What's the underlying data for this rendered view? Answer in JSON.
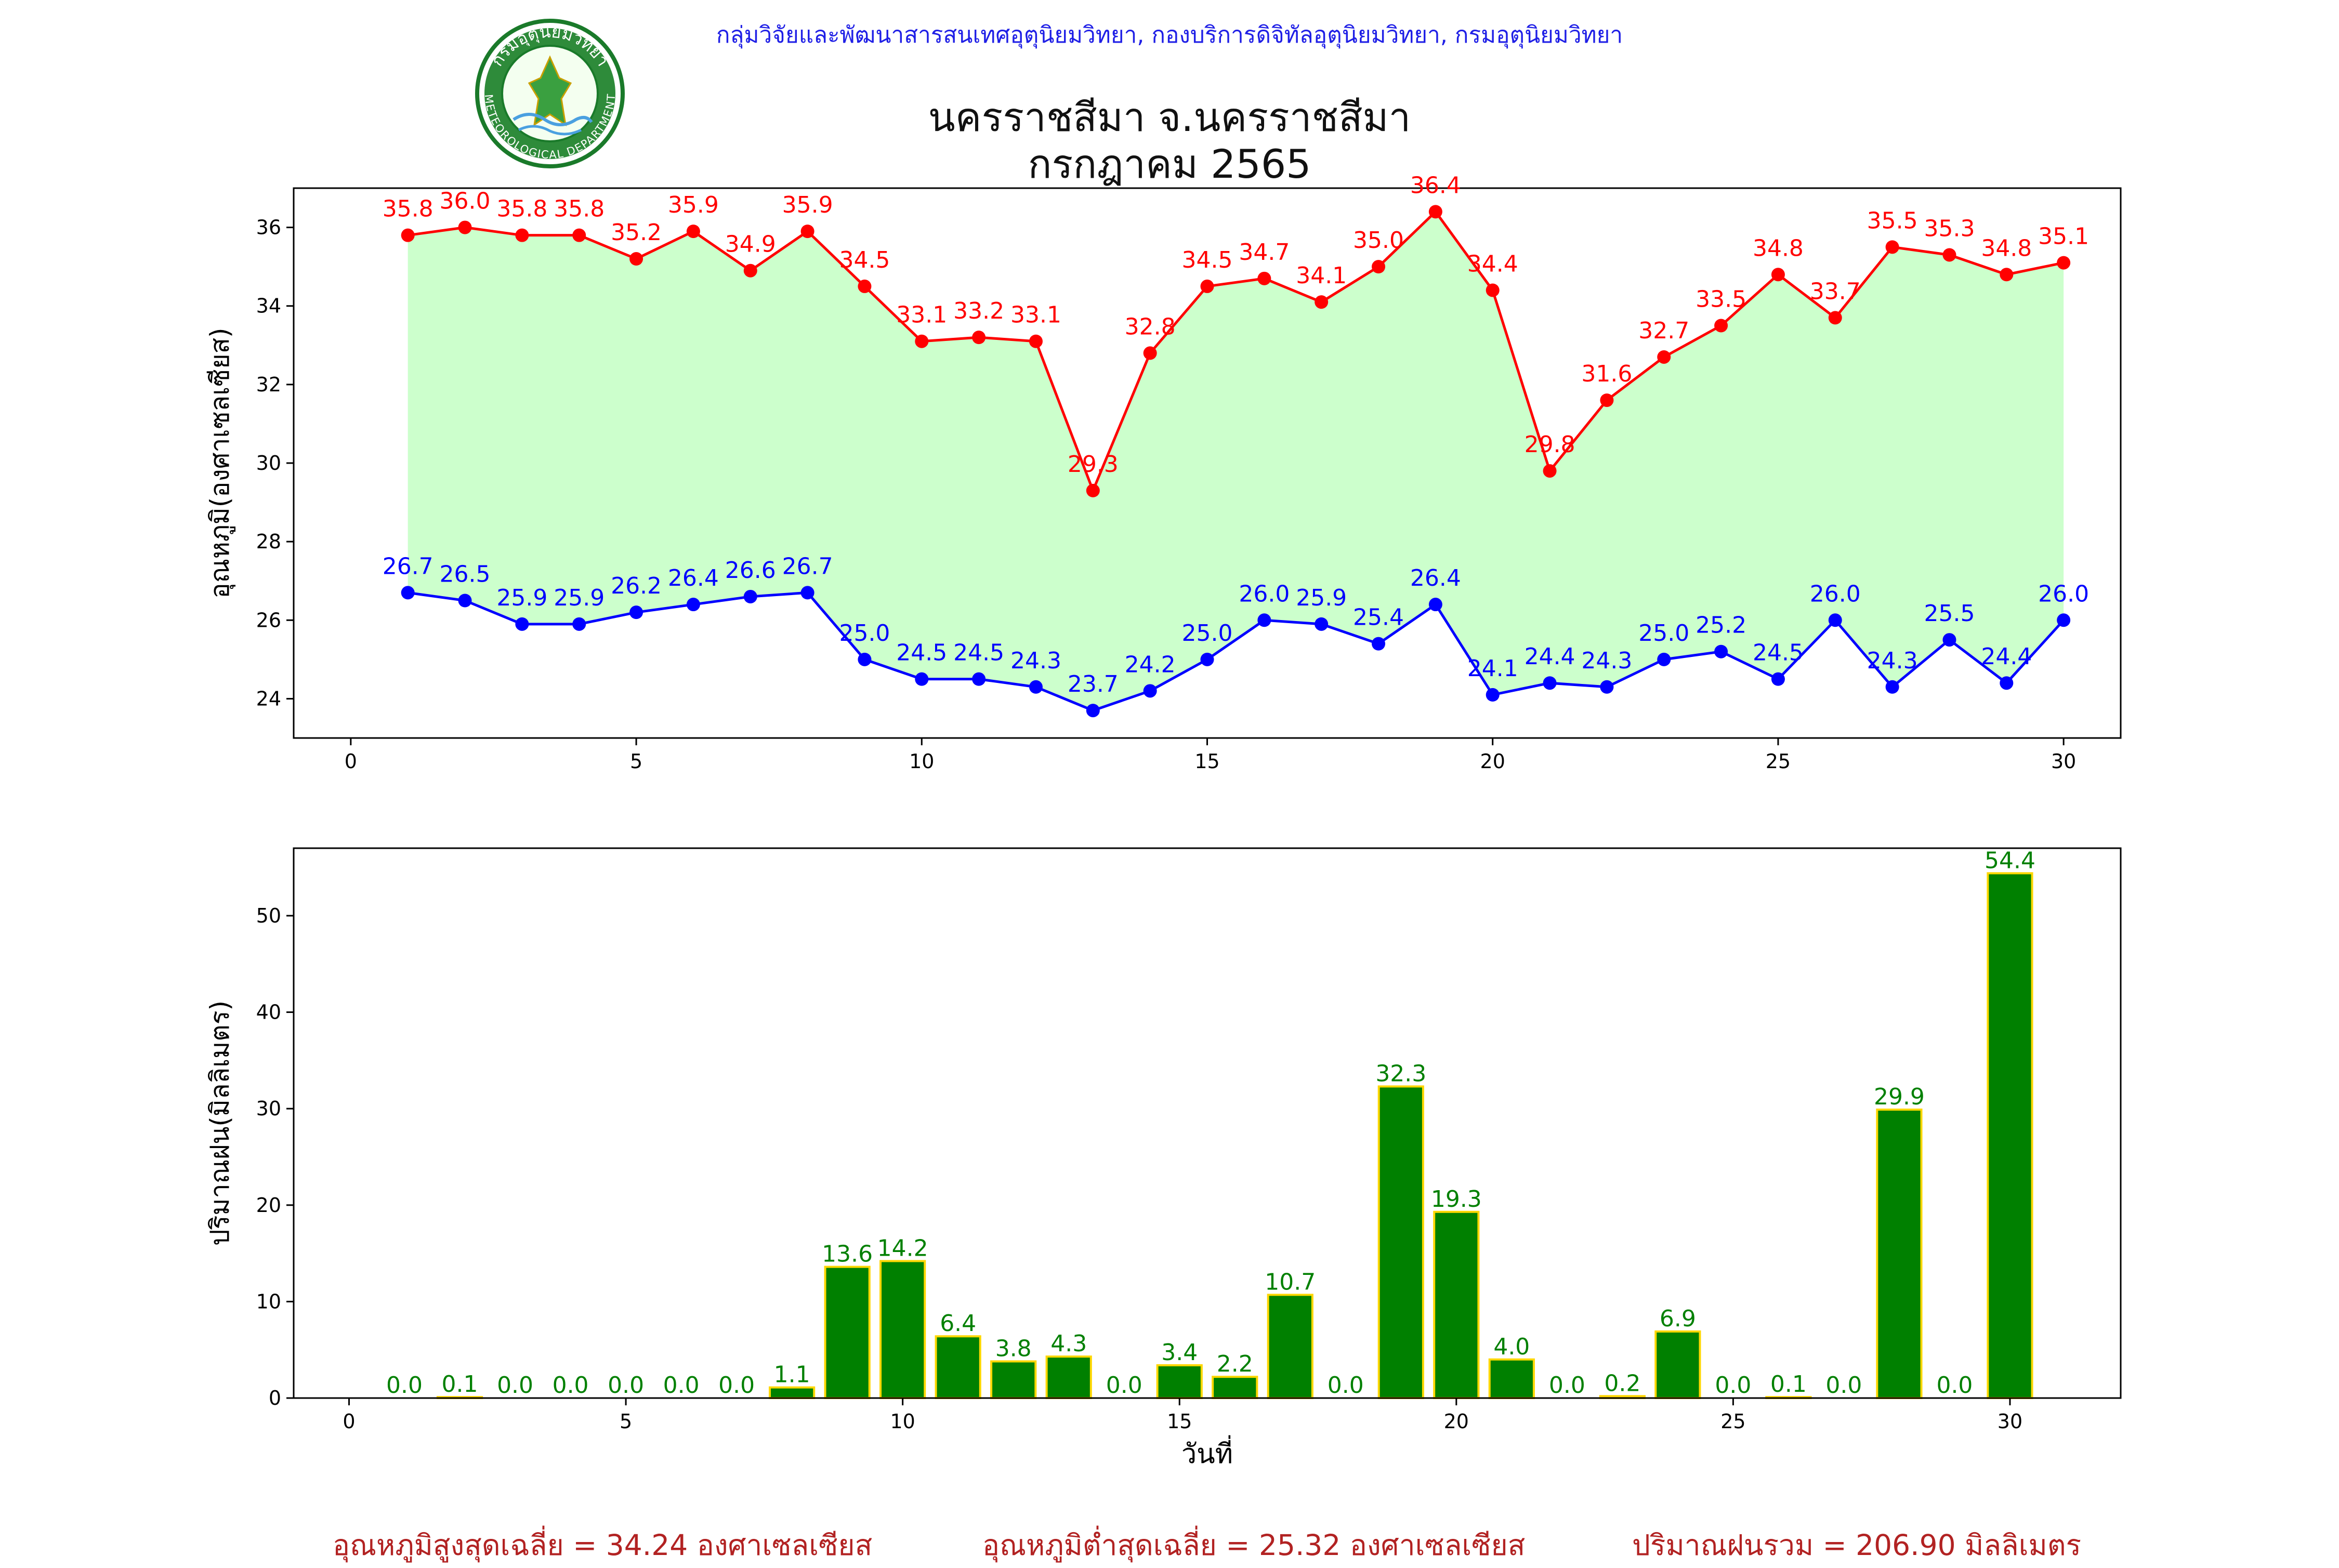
{
  "header": {
    "org_line": "กลุ่มวิจัยและพัฒนาสารสนเทศอุตุนิยมวิทยา, กองบริการดิจิทัลอุตุนิยมวิทยา, กรมอุตุนิยมวิทยา",
    "logo_top_text": "กรมอุตุนิยมวิทยา",
    "logo_bottom_text": "METEOROLOGICAL DEPARTMENT"
  },
  "chart_data": [
    {
      "type": "line",
      "title": "นครราชสีมา จ.นครราชสีมา",
      "subtitle": "กรกฎาคม 2565",
      "xlabel": "",
      "ylabel": "อุณหภูมิ(องศาเซลเซียส)",
      "xlim": [
        -1,
        31
      ],
      "ylim": [
        23.0,
        37.0
      ],
      "xticks": [
        0,
        5,
        10,
        15,
        20,
        25,
        30
      ],
      "yticks": [
        24,
        26,
        28,
        30,
        32,
        34,
        36
      ],
      "grid": false,
      "fill_between": {
        "color": "#ccffcc"
      },
      "x": [
        1,
        2,
        3,
        4,
        5,
        6,
        7,
        8,
        9,
        10,
        11,
        12,
        13,
        14,
        15,
        16,
        17,
        18,
        19,
        20,
        21,
        22,
        23,
        24,
        25,
        26,
        27,
        28,
        29,
        30
      ],
      "series": [
        {
          "color": "#ff0000",
          "values": [
            35.8,
            36.0,
            35.8,
            35.8,
            35.2,
            35.9,
            34.9,
            35.9,
            34.5,
            33.1,
            33.2,
            33.1,
            29.3,
            32.8,
            34.5,
            34.7,
            34.1,
            35.0,
            36.4,
            34.4,
            29.8,
            31.6,
            32.7,
            33.5,
            34.8,
            33.7,
            35.5,
            35.3,
            34.8,
            35.1
          ]
        },
        {
          "color": "#0000ff",
          "values": [
            26.7,
            26.5,
            25.9,
            25.9,
            26.2,
            26.4,
            26.6,
            26.7,
            25.0,
            24.5,
            24.5,
            24.3,
            23.7,
            24.2,
            25.0,
            26.0,
            25.9,
            25.4,
            26.4,
            24.1,
            24.4,
            24.3,
            25.0,
            25.2,
            24.5,
            26.0,
            24.3,
            25.5,
            24.4,
            26.0
          ]
        }
      ]
    },
    {
      "type": "bar",
      "xlabel": "วันที่",
      "ylabel": "ปริมาณฝน(มิลลิเมตร)",
      "xlim": [
        -1,
        32
      ],
      "ylim": [
        0,
        57
      ],
      "xticks": [
        0,
        5,
        10,
        15,
        20,
        25,
        30
      ],
      "yticks": [
        0,
        10,
        20,
        30,
        40,
        50
      ],
      "grid": false,
      "bar_color": "#008000",
      "edge_color": "#ffd700",
      "label_color": "#008000",
      "categories": [
        1,
        2,
        3,
        4,
        5,
        6,
        7,
        8,
        9,
        10,
        11,
        12,
        13,
        14,
        15,
        16,
        17,
        18,
        19,
        20,
        21,
        22,
        23,
        24,
        25,
        26,
        27,
        28,
        29,
        30
      ],
      "values": [
        0.0,
        0.1,
        0.0,
        0.0,
        0.0,
        0.0,
        0.0,
        1.1,
        13.6,
        14.2,
        6.4,
        3.8,
        4.3,
        0.0,
        3.4,
        2.2,
        10.7,
        0.0,
        32.3,
        19.3,
        4.0,
        0.0,
        0.2,
        6.9,
        0.0,
        0.1,
        0.0,
        29.9,
        0.0,
        54.4
      ]
    }
  ],
  "footer": {
    "avg_max_text": "อุณหภูมิสูงสุดเฉลี่ย = 34.24 องศาเซลเซียส",
    "avg_min_text": "อุณหภูมิต่ำสุดเฉลี่ย = 25.32 องศาเซลเซียส",
    "total_rain_text": "ปริมาณฝนรวม = 206.90 มิลลิเมตร",
    "color": "#b22222"
  }
}
